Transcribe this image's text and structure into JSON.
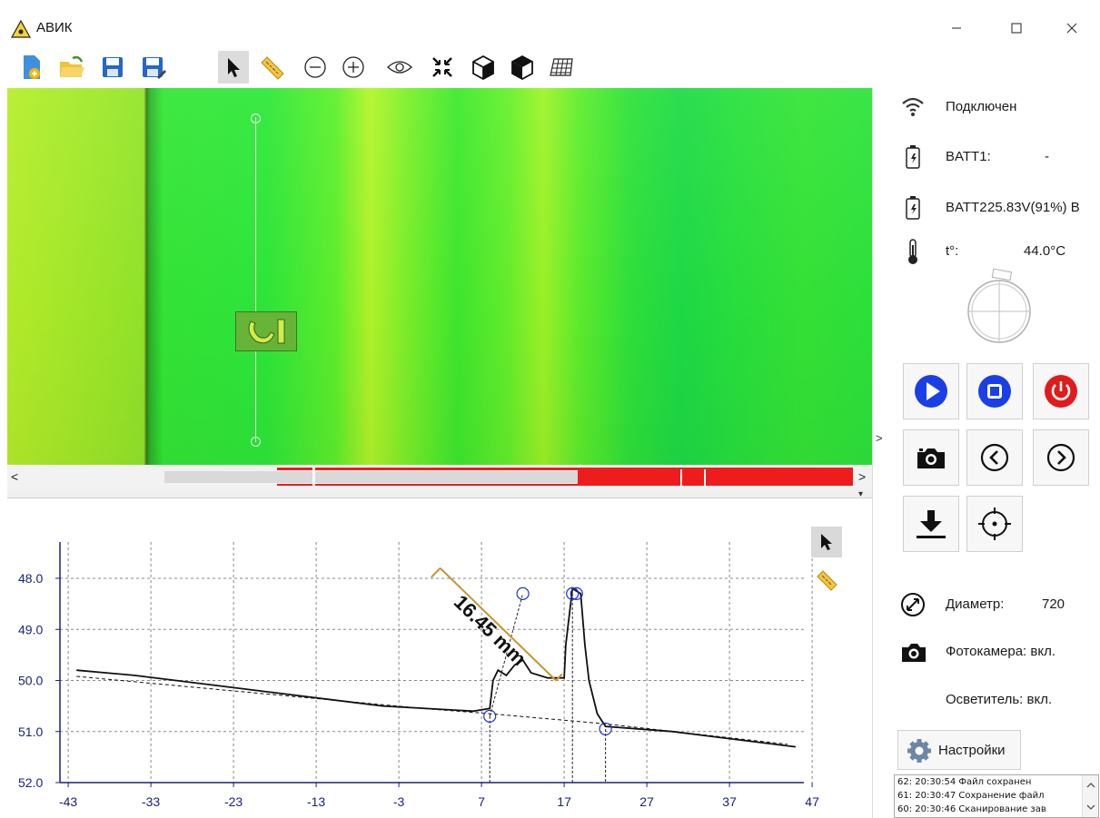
{
  "window": {
    "title": "АВИК",
    "controls": [
      "minimize-icon",
      "maximize-icon",
      "close-icon"
    ]
  },
  "toolbar": {
    "buttons": [
      "new-file-icon",
      "open-folder-icon",
      "save-icon",
      "save-as-icon",
      "pointer-icon",
      "ruler-icon",
      "zoom-out-icon",
      "zoom-in-icon",
      "eye-icon",
      "fit-icon",
      "cube-icon",
      "cube-shaded-icon",
      "grid-icon"
    ],
    "selected": "pointer-icon"
  },
  "image_view": {
    "colors": {
      "yellow_green": "#a4ea2a",
      "green": "#2ee83a",
      "edge": "#3a7a18"
    }
  },
  "timeline": {
    "left_arrow": "<",
    "right_arrow": ">",
    "collapse_arrow": "▾",
    "colors": {
      "track": "#d9d9d9",
      "defect": "#ee1c1c"
    }
  },
  "splitter": {
    "arrow": ">"
  },
  "chart_data": {
    "type": "line",
    "title": "",
    "xlabel": "",
    "ylabel": "",
    "x_ticks": [
      -43,
      -33,
      -23,
      -13,
      -3,
      7,
      17,
      27,
      37,
      47
    ],
    "y_ticks": [
      "48.0",
      "49.0",
      "50.0",
      "51.0",
      "52.0"
    ],
    "xlim": [
      -44,
      46
    ],
    "ylim": [
      47.2,
      52.0
    ],
    "y_inverted": true,
    "grid": "dashed",
    "series": [
      {
        "style": "solid",
        "color": "#111111",
        "points": [
          [
            -42,
            49.8
          ],
          [
            -35,
            49.9
          ],
          [
            -25,
            50.1
          ],
          [
            -15,
            50.3
          ],
          [
            -5,
            50.5
          ],
          [
            6,
            50.6
          ],
          [
            8,
            50.55
          ],
          [
            8.4,
            50.0
          ],
          [
            9,
            49.8
          ],
          [
            10,
            49.9
          ],
          [
            11,
            49.7
          ],
          [
            12,
            49.6
          ],
          [
            13,
            49.85
          ],
          [
            15,
            49.95
          ],
          [
            17,
            49.95
          ],
          [
            17.2,
            49.3
          ],
          [
            18,
            48.2
          ],
          [
            19,
            48.3
          ],
          [
            19.5,
            49.3
          ],
          [
            20,
            50.0
          ],
          [
            21,
            50.65
          ],
          [
            22,
            50.9
          ],
          [
            30,
            51.0
          ],
          [
            40,
            51.2
          ],
          [
            45,
            51.3
          ]
        ]
      },
      {
        "style": "dashed",
        "color": "#111111",
        "points": [
          [
            -42,
            49.92
          ],
          [
            0,
            50.55
          ],
          [
            8,
            50.65
          ],
          [
            22,
            50.85
          ],
          [
            44,
            51.25
          ]
        ]
      }
    ],
    "markers": [
      [
        8,
        50.7
      ],
      [
        12,
        48.3
      ],
      [
        18,
        48.3
      ],
      [
        18.5,
        48.3
      ],
      [
        22,
        50.95
      ]
    ],
    "measurement": {
      "label": "16.45 mm",
      "color": "#c8962a",
      "from": [
        2,
        47.8
      ],
      "to": [
        16,
        50.0
      ]
    },
    "tools": [
      "pointer-icon",
      "ruler-icon"
    ]
  },
  "panel": {
    "status": "Подключен",
    "batt1": {
      "label": "BATT1:",
      "value": "-"
    },
    "batt2": {
      "label": "BATT2",
      "value": "25.83V(91%) B"
    },
    "temperature": {
      "label": "t°:",
      "value": "44.0°C"
    },
    "controls": [
      "play-icon",
      "stop-icon",
      "power-icon",
      "camera-icon",
      "prev-icon",
      "next-icon",
      "download-icon",
      "target-icon"
    ],
    "colors": {
      "blue": "#1a3fe6",
      "red": "#e11b1b"
    },
    "diameter": {
      "label": "Диаметр:",
      "value": "720"
    },
    "camera": "Фотокамера: вкл.",
    "light": "Осветитель: вкл.",
    "settings_label": "Настройки",
    "log": [
      "62: 20:30:54 Файл сохранен",
      "61: 20:30:47 Сохранение файл",
      "60: 20:30:46 Сканирование зав"
    ]
  }
}
